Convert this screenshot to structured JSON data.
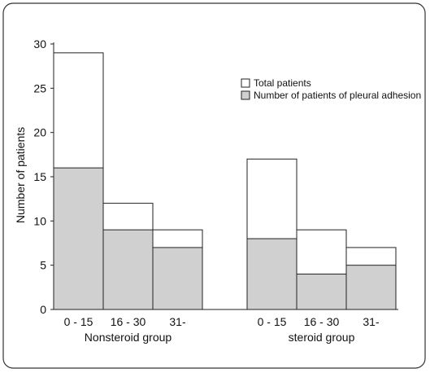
{
  "chart_data": {
    "type": "bar",
    "title": "",
    "ylabel": "Number of patients",
    "ylim": [
      0,
      30
    ],
    "yticks": [
      0,
      5,
      10,
      15,
      20,
      25,
      30
    ],
    "legend_position": "top-right",
    "grid": false,
    "groups": [
      {
        "name": "Nonsteroid group",
        "categories": [
          "0  - 15",
          "16 - 30",
          "31-"
        ]
      },
      {
        "name": "steroid group",
        "categories": [
          "0  - 15",
          "16 - 30",
          "31-"
        ]
      }
    ],
    "series": [
      {
        "name": "Total patients",
        "color": "#ffffff",
        "values": [
          [
            29,
            12,
            9
          ],
          [
            17,
            9,
            7
          ]
        ]
      },
      {
        "name": "Number of patients of pleural adhesion",
        "color": "#d0d0d0",
        "values": [
          [
            16,
            9,
            7
          ],
          [
            8,
            4,
            5
          ]
        ]
      }
    ]
  }
}
